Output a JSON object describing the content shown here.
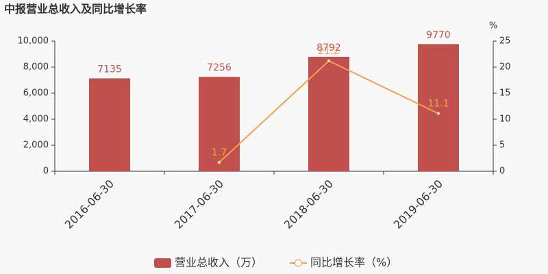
{
  "chart_data": {
    "type": "bar-line",
    "title": "中报营业总收入及同比增长率",
    "y2_label": "%",
    "categories": [
      "2016-06-30",
      "2017-06-30",
      "2018-06-30",
      "2019-06-30"
    ],
    "series": [
      {
        "name": "营业总收入（万）",
        "type": "bar",
        "color": "#c0504d",
        "values": [
          7135,
          7256,
          8792,
          9770
        ]
      },
      {
        "name": "同比增长率（%）",
        "type": "line",
        "axis": "y2",
        "color": "#f4a04a",
        "values": [
          null,
          1.7,
          21.2,
          11.1
        ]
      }
    ],
    "ylim": [
      0,
      10000
    ],
    "yticks": [
      0,
      {
        "value": 2000,
        "label": "2,000"
      },
      {
        "value": 4000,
        "label": "4,000"
      },
      {
        "value": 6000,
        "label": "6,000"
      },
      {
        "value": 8000,
        "label": "8,000"
      },
      {
        "value": 10000,
        "label": "10,000"
      }
    ],
    "y2lim": [
      0,
      25
    ],
    "y2ticks": [
      0,
      5,
      10,
      15,
      20,
      25
    ],
    "grid": false,
    "legend": "bottom"
  }
}
